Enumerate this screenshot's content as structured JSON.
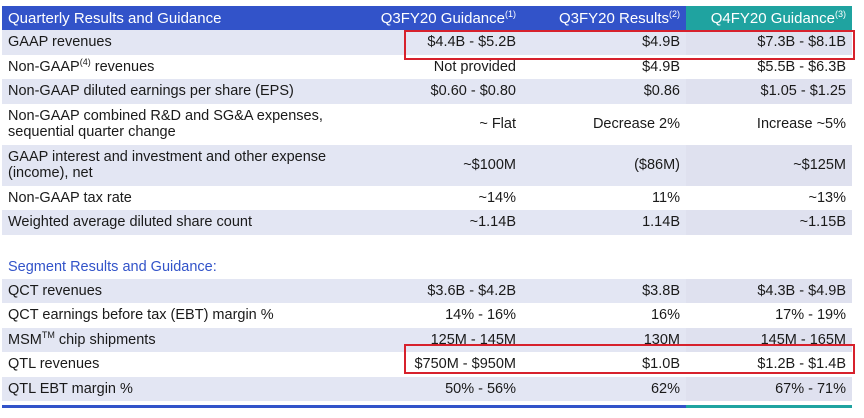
{
  "header": {
    "title": "Quarterly Results and Guidance",
    "col_guidance_q3": "Q3FY20 Guidance",
    "col_guidance_q3_note": "(1)",
    "col_results_q3": "Q3FY20 Results",
    "col_results_q3_note": "(2)",
    "col_guidance_q4": "Q4FY20 Guidance",
    "col_guidance_q4_note": "(3)"
  },
  "rows": [
    {
      "label": "GAAP revenues",
      "q3_guidance": "$4.4B - $5.2B",
      "q3_results": "$4.9B",
      "q4_guidance": "$7.3B - $8.1B"
    },
    {
      "label_pre": "Non-GAAP",
      "label_sup": "(4)",
      "label_post": " revenues",
      "q3_guidance": "Not provided",
      "q3_results": "$4.9B",
      "q4_guidance": "$5.5B - $6.3B"
    },
    {
      "label": "Non-GAAP diluted earnings per share (EPS)",
      "q3_guidance": "$0.60 - $0.80",
      "q3_results": "$0.86",
      "q4_guidance": "$1.05 - $1.25"
    },
    {
      "label": "Non-GAAP combined R&D and SG&A expenses, sequential quarter change",
      "q3_guidance": "~ Flat",
      "q3_results": "Decrease 2%",
      "q4_guidance": "Increase ~5%"
    },
    {
      "label": "GAAP interest and investment and other expense (income), net",
      "q3_guidance": "~$100M",
      "q3_results": "($86M)",
      "q4_guidance": "~$125M"
    },
    {
      "label": "Non-GAAP tax rate",
      "q3_guidance": "~14%",
      "q3_results": "11%",
      "q4_guidance": "~13%"
    },
    {
      "label": "Weighted average diluted share count",
      "q3_guidance": "~1.14B",
      "q3_results": "1.14B",
      "q4_guidance": "~1.15B"
    }
  ],
  "segment_heading": "Segment Results and Guidance:",
  "segment_rows": [
    {
      "label": "QCT revenues",
      "q3_guidance": "$3.6B - $4.2B",
      "q3_results": "$3.8B",
      "q4_guidance": "$4.3B - $4.9B"
    },
    {
      "label": "QCT earnings before tax (EBT) margin %",
      "q3_guidance": "14% - 16%",
      "q3_results": "16%",
      "q4_guidance": "17% - 19%"
    },
    {
      "label_pre": "MSM",
      "label_sup": "TM",
      "label_post": " chip shipments",
      "q3_guidance": "125M - 145M",
      "q3_results": "130M",
      "q4_guidance": "145M - 165M"
    },
    {
      "label": "QTL revenues",
      "q3_guidance": "$750M - $950M",
      "q3_results": "$1.0B",
      "q4_guidance": "$1.2B - $1.4B"
    },
    {
      "label": "QTL EBT margin %",
      "q3_guidance": "50% - 56%",
      "q3_results": "62%",
      "q4_guidance": "67% - 71%"
    }
  ],
  "colors": {
    "header_blue": "#3253c9",
    "header_teal": "#1fa3a0",
    "row_stripe": "#e3e6f3",
    "highlight_red": "#d7212c"
  }
}
